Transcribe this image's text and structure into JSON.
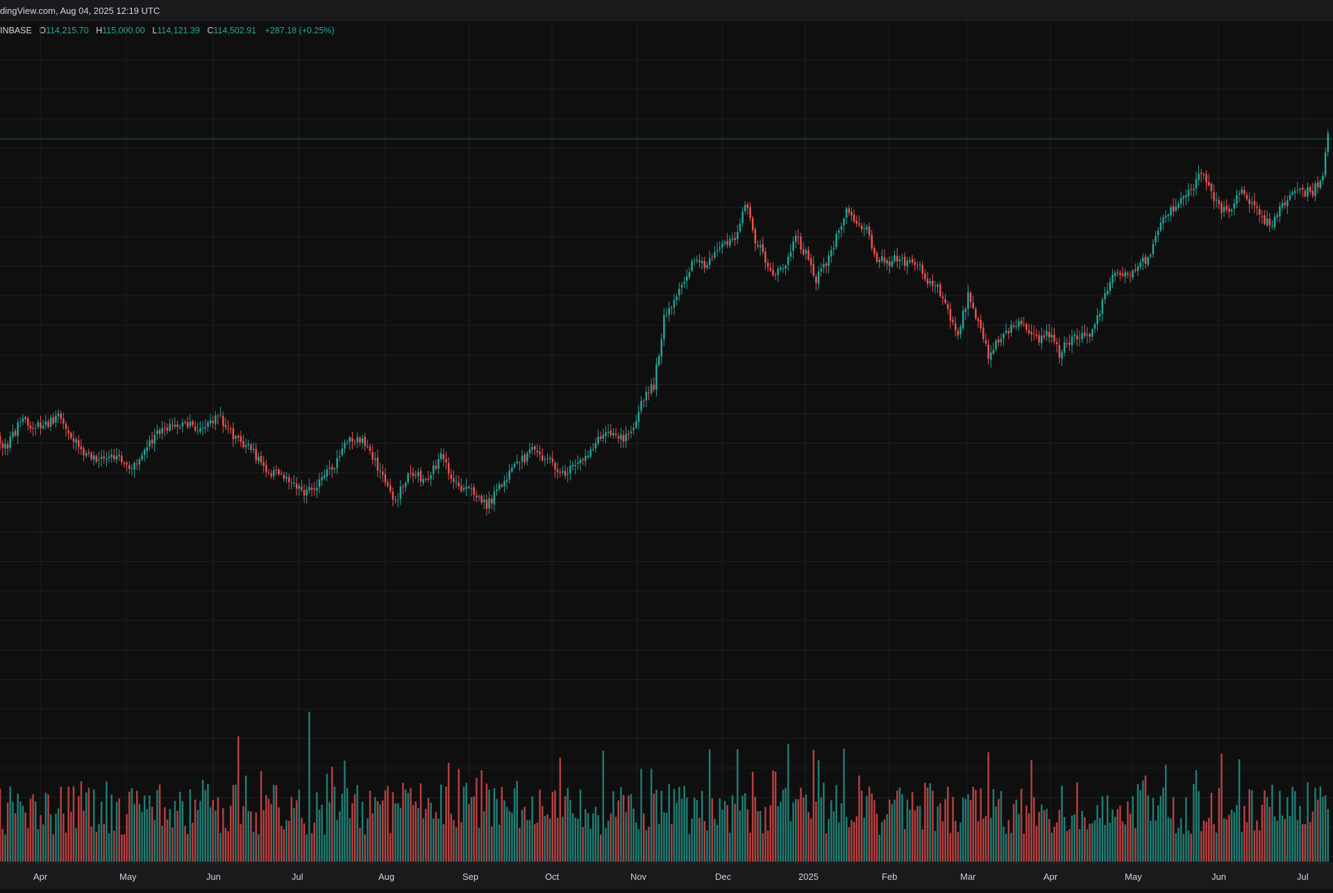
{
  "header": {
    "source_text": "dingView.com, Aug 04, 2025 12:19 UTC"
  },
  "legend": {
    "symbol": "INBASE",
    "open_label": "O",
    "open_value": "114,215.70",
    "high_label": "H",
    "high_value": "115,000.00",
    "low_label": "L",
    "low_value": "114,121.39",
    "close_label": "C",
    "close_value": "114,502.91",
    "change": "+287.18 (+0.25%)"
  },
  "colors": {
    "background": "#0f0f10",
    "up": "#26a69a",
    "down": "#ef5350",
    "up_volume": "#1f7d74",
    "down_volume": "#b8403f",
    "grid": "#1e1f23",
    "price_line": "#1f5f56"
  },
  "chart_data": {
    "type": "candlestick",
    "title": "",
    "xlabel": "",
    "ylabel": "",
    "interval": "1D",
    "x_tick_labels": [
      "Apr",
      "May",
      "Jun",
      "Jul",
      "Aug",
      "Sep",
      "Oct",
      "Nov",
      "Dec",
      "2025",
      "Feb",
      "Mar",
      "Apr",
      "May",
      "Jun",
      "Jul"
    ],
    "last_price_line": "close",
    "note_series": "Close-path anchors in plot coordinates digitized from the chart (day index, approximate price level); candles and volume bars are generated between anchors.",
    "close_path": [
      [
        0,
        570
      ],
      [
        8,
        615
      ],
      [
        14,
        578
      ],
      [
        22,
        585
      ],
      [
        30,
        570
      ],
      [
        38,
        622
      ],
      [
        46,
        632
      ],
      [
        52,
        625
      ],
      [
        58,
        648
      ],
      [
        64,
        615
      ],
      [
        70,
        585
      ],
      [
        78,
        582
      ],
      [
        86,
        588
      ],
      [
        92,
        568
      ],
      [
        98,
        598
      ],
      [
        106,
        622
      ],
      [
        112,
        648
      ],
      [
        120,
        658
      ],
      [
        126,
        678
      ],
      [
        132,
        665
      ],
      [
        138,
        640
      ],
      [
        144,
        598
      ],
      [
        150,
        608
      ],
      [
        156,
        650
      ],
      [
        162,
        690
      ],
      [
        168,
        650
      ],
      [
        174,
        662
      ],
      [
        180,
        628
      ],
      [
        186,
        670
      ],
      [
        192,
        678
      ],
      [
        198,
        698
      ],
      [
        204,
        668
      ],
      [
        210,
        640
      ],
      [
        216,
        618
      ],
      [
        222,
        630
      ],
      [
        228,
        654
      ],
      [
        234,
        640
      ],
      [
        240,
        612
      ],
      [
        246,
        588
      ],
      [
        252,
        600
      ],
      [
        256,
        580
      ],
      [
        260,
        545
      ],
      [
        264,
        525
      ],
      [
        268,
        430
      ],
      [
        272,
        408
      ],
      [
        276,
        372
      ],
      [
        280,
        340
      ],
      [
        284,
        355
      ],
      [
        288,
        340
      ],
      [
        292,
        318
      ],
      [
        296,
        310
      ],
      [
        300,
        262
      ],
      [
        304,
        315
      ],
      [
        308,
        345
      ],
      [
        312,
        368
      ],
      [
        316,
        350
      ],
      [
        320,
        312
      ],
      [
        324,
        336
      ],
      [
        328,
        372
      ],
      [
        332,
        350
      ],
      [
        336,
        310
      ],
      [
        340,
        268
      ],
      [
        344,
        290
      ],
      [
        348,
        302
      ],
      [
        352,
        340
      ],
      [
        356,
        348
      ],
      [
        360,
        340
      ],
      [
        364,
        352
      ],
      [
        368,
        348
      ],
      [
        372,
        378
      ],
      [
        376,
        385
      ],
      [
        380,
        420
      ],
      [
        384,
        448
      ],
      [
        388,
        395
      ],
      [
        392,
        438
      ],
      [
        396,
        480
      ],
      [
        400,
        462
      ],
      [
        404,
        448
      ],
      [
        408,
        430
      ],
      [
        412,
        455
      ],
      [
        416,
        462
      ],
      [
        420,
        450
      ],
      [
        424,
        478
      ],
      [
        428,
        462
      ],
      [
        432,
        450
      ],
      [
        436,
        450
      ],
      [
        440,
        418
      ],
      [
        444,
        370
      ],
      [
        448,
        365
      ],
      [
        452,
        362
      ],
      [
        456,
        348
      ],
      [
        460,
        340
      ],
      [
        464,
        285
      ],
      [
        468,
        272
      ],
      [
        472,
        262
      ],
      [
        476,
        240
      ],
      [
        480,
        222
      ],
      [
        484,
        250
      ],
      [
        488,
        275
      ],
      [
        492,
        266
      ],
      [
        496,
        240
      ],
      [
        500,
        268
      ],
      [
        504,
        285
      ],
      [
        508,
        290
      ],
      [
        512,
        265
      ],
      [
        516,
        245
      ],
      [
        520,
        245
      ],
      [
        524,
        248
      ],
      [
        528,
        220
      ],
      [
        530,
        162
      ]
    ]
  }
}
